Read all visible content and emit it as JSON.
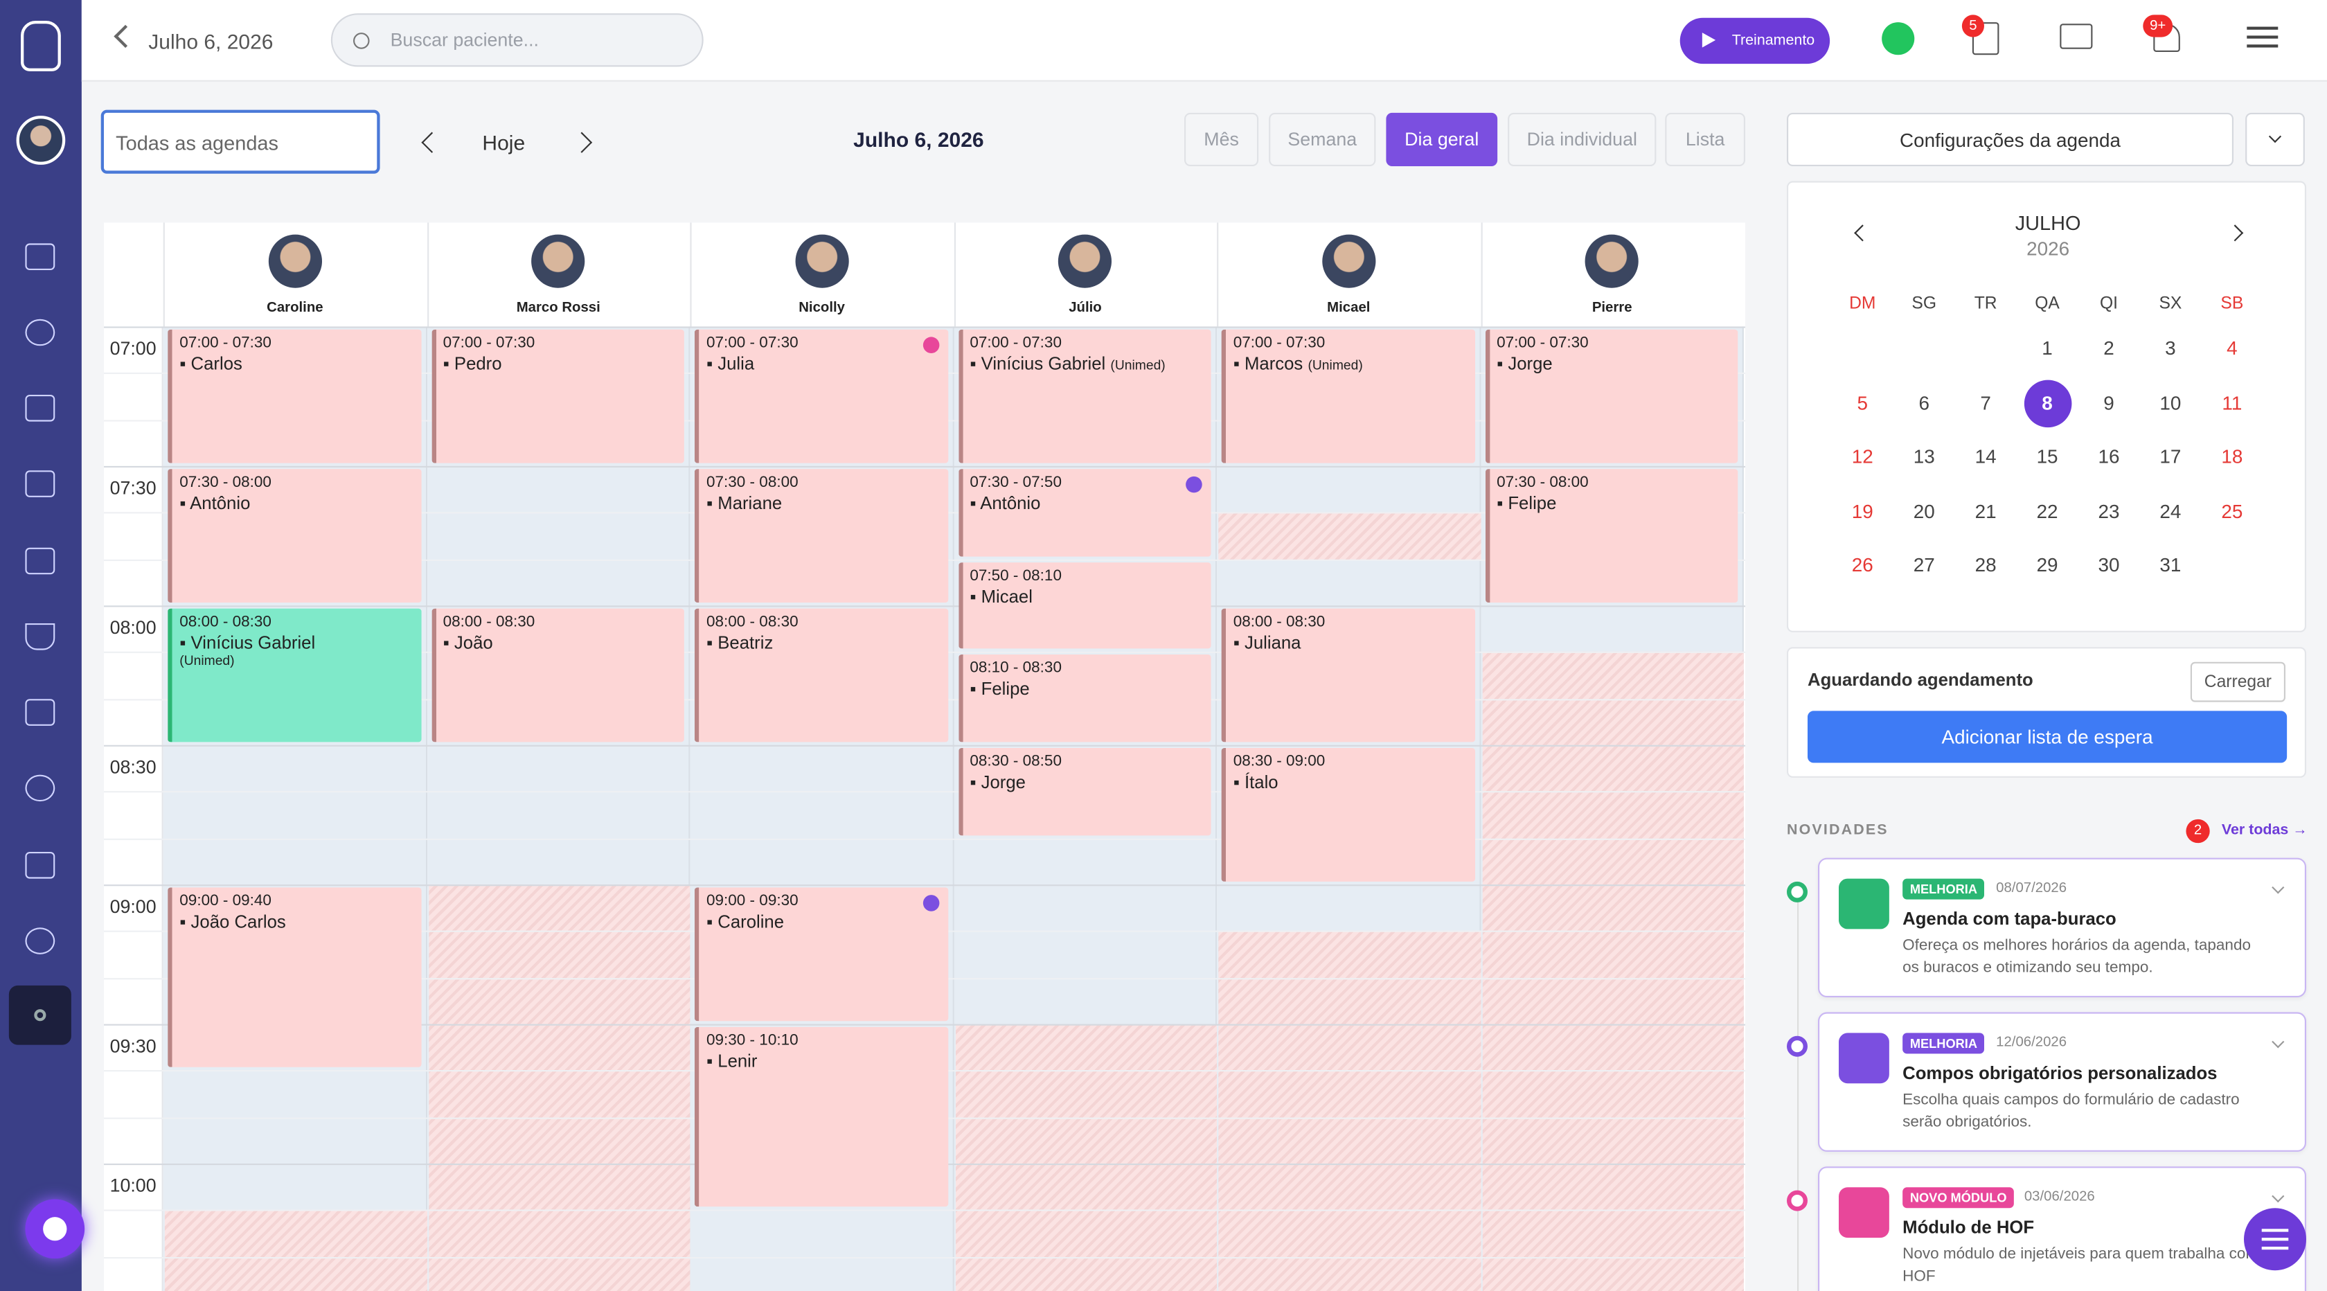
{
  "header": {
    "date": "Julho 6, 2026",
    "search_placeholder": "Buscar paciente...",
    "training": "Treinamento",
    "tasks_badge": "5",
    "notifications_badge": "9+"
  },
  "toolbar": {
    "agenda_filter": "Todas as agendas",
    "today": "Hoje",
    "title": "Julho 6, 2026",
    "views": [
      {
        "label": "Mês",
        "active": false
      },
      {
        "label": "Semana",
        "active": false
      },
      {
        "label": "Dia geral",
        "active": true
      },
      {
        "label": "Dia individual",
        "active": false
      },
      {
        "label": "Lista",
        "active": false
      }
    ]
  },
  "schedule": {
    "times": [
      "07:00",
      "07:30",
      "08:00",
      "08:30",
      "09:00",
      "09:30",
      "10:00"
    ],
    "professionals": [
      {
        "name": "Caroline",
        "appointments": [
          {
            "time": "07:00 - 07:30",
            "patient": "Carlos"
          },
          {
            "time": "07:30 - 08:00",
            "patient": "Antônio"
          },
          {
            "time": "08:00 - 08:30",
            "patient": "Vinícius Gabriel",
            "note": "(Unimed)",
            "color": "#7fe9c9"
          },
          {
            "time": "09:00 - 09:40",
            "patient": "João Carlos"
          }
        ]
      },
      {
        "name": "Marco Rossi",
        "appointments": [
          {
            "time": "07:00 - 07:30",
            "patient": "Pedro"
          },
          {
            "time": "08:00 - 08:30",
            "patient": "João"
          }
        ]
      },
      {
        "name": "Nicolly",
        "appointments": [
          {
            "time": "07:00 - 07:30",
            "patient": "Julia",
            "dot": "#e8479a"
          },
          {
            "time": "07:30 - 08:00",
            "patient": "Mariane"
          },
          {
            "time": "08:00 - 08:30",
            "patient": "Beatriz"
          },
          {
            "time": "09:00 - 09:30",
            "patient": "Caroline",
            "dot": "#7b4fe0"
          },
          {
            "time": "09:30 - 10:10",
            "patient": "Lenir"
          }
        ]
      },
      {
        "name": "Júlio",
        "appointments": [
          {
            "time": "07:00 - 07:30",
            "patient": "Vinícius Gabriel",
            "note": "(Unimed)"
          },
          {
            "time": "07:30 - 07:50",
            "patient": "Antônio",
            "dot": "#7b4fe0"
          },
          {
            "time": "07:50 - 08:10",
            "patient": "Micael"
          },
          {
            "time": "08:10 - 08:30",
            "patient": "Felipe"
          },
          {
            "time": "08:30 - 08:50",
            "patient": "Jorge"
          }
        ]
      },
      {
        "name": "Micael",
        "appointments": [
          {
            "time": "07:00 - 07:30",
            "patient": "Marcos",
            "note": "(Unimed)"
          },
          {
            "time": "08:00 - 08:30",
            "patient": "Juliana"
          },
          {
            "time": "08:30 - 09:00",
            "patient": "Ítalo"
          }
        ]
      },
      {
        "name": "Pierre",
        "appointments": [
          {
            "time": "07:00 - 07:30",
            "patient": "Jorge"
          },
          {
            "time": "07:30 - 08:00",
            "patient": "Felipe"
          }
        ]
      }
    ]
  },
  "sidebar": {
    "settings_button": "Configurações da agenda",
    "calendar": {
      "month": "JULHO",
      "year": "2026",
      "weekdays": [
        "DM",
        "SG",
        "TR",
        "QA",
        "QI",
        "SX",
        "SB"
      ],
      "days": [
        1,
        2,
        3,
        4,
        5,
        6,
        7,
        8,
        9,
        10,
        11,
        12,
        13,
        14,
        15,
        16,
        17,
        18,
        19,
        20,
        21,
        22,
        23,
        24,
        25,
        26,
        27,
        28,
        29,
        30,
        31
      ],
      "selected": 8
    },
    "waiting": {
      "title": "Aguardando agendamento",
      "load": "Carregar",
      "add": "Adicionar lista de espera"
    },
    "news": {
      "title": "NOVIDADES",
      "count": "2",
      "see_all": "Ver todas →",
      "items": [
        {
          "tag": "MELHORIA",
          "date": "08/07/2026",
          "title": "Agenda com tapa-buraco",
          "description": "Ofereça os melhores horários da agenda, tapando os buracos e otimizando seu tempo.",
          "color": "#2bb673"
        },
        {
          "tag": "MELHORIA",
          "date": "12/06/2026",
          "title": "Compos obrigatórios personalizados",
          "description": "Escolha quais campos do formulário de cadastro serão obrigatórios.",
          "color": "#7b4fe0"
        },
        {
          "tag": "NOVO MÓDULO",
          "date": "03/06/2026",
          "title": "Módulo de HOF",
          "description": "Novo módulo de injetáveis para quem trabalha com HOF",
          "color": "#e8479a"
        }
      ]
    }
  }
}
